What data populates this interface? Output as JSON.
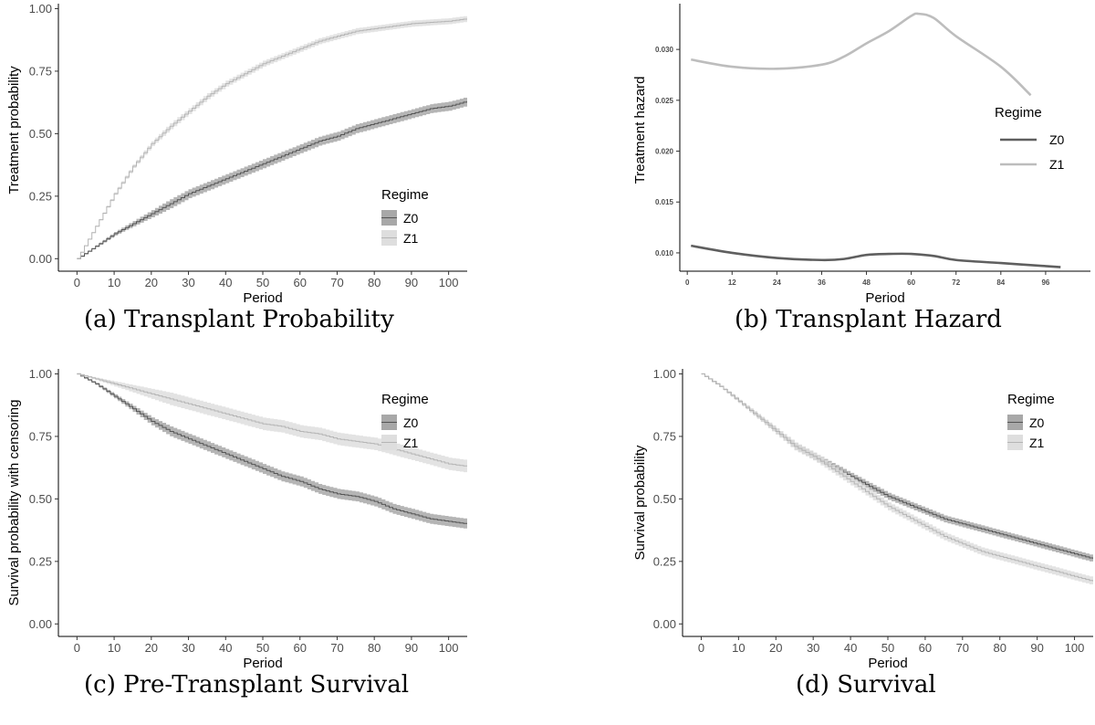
{
  "chart_data": [
    {
      "id": "a",
      "type": "line",
      "caption": "(a) Transplant Probability",
      "xlabel": "Period",
      "ylabel": "Treatment probability",
      "xlim": [
        -5,
        105
      ],
      "ylim": [
        -0.05,
        1.02
      ],
      "xticks": [
        0,
        10,
        20,
        30,
        40,
        50,
        60,
        70,
        80,
        90,
        100
      ],
      "yticks": [
        0.0,
        0.25,
        0.5,
        0.75,
        1.0
      ],
      "ytick_labels": [
        "0.00",
        "0.25",
        "0.50",
        "0.75",
        "1.00"
      ],
      "step": true,
      "band": true,
      "legend": {
        "title": "Regime",
        "position": "bottom-right"
      },
      "series": [
        {
          "name": "Z0",
          "line_color": "#555555",
          "band_color": "#a8a8a8",
          "x": [
            0,
            5,
            10,
            15,
            20,
            25,
            30,
            35,
            40,
            45,
            50,
            55,
            60,
            65,
            70,
            75,
            80,
            85,
            90,
            95,
            100,
            105
          ],
          "y": [
            0.0,
            0.05,
            0.1,
            0.14,
            0.18,
            0.22,
            0.26,
            0.29,
            0.32,
            0.35,
            0.38,
            0.41,
            0.44,
            0.47,
            0.49,
            0.52,
            0.54,
            0.56,
            0.58,
            0.6,
            0.61,
            0.63
          ],
          "band_halfwidth": 0.018
        },
        {
          "name": "Z1",
          "line_color": "#b5b5b5",
          "band_color": "#dedede",
          "x": [
            0,
            5,
            10,
            15,
            20,
            25,
            30,
            35,
            40,
            45,
            50,
            55,
            60,
            65,
            70,
            75,
            80,
            85,
            90,
            95,
            100,
            105
          ],
          "y": [
            0.0,
            0.13,
            0.26,
            0.37,
            0.46,
            0.53,
            0.59,
            0.65,
            0.7,
            0.74,
            0.78,
            0.81,
            0.84,
            0.87,
            0.89,
            0.91,
            0.92,
            0.93,
            0.94,
            0.945,
            0.95,
            0.96
          ],
          "band_halfwidth": 0.012
        }
      ]
    },
    {
      "id": "b",
      "type": "line",
      "caption": "(b) Transplant Hazard",
      "xlabel": "Period",
      "ylabel": "Treatment hazard",
      "xlim": [
        -2,
        108
      ],
      "ylim": [
        0.0082,
        0.0345
      ],
      "xticks": [
        0,
        12,
        24,
        36,
        48,
        60,
        72,
        84,
        96
      ],
      "yticks": [
        0.01,
        0.015,
        0.02,
        0.025,
        0.03
      ],
      "ytick_labels": [
        "0.010",
        "0.015",
        "0.020",
        "0.025",
        "0.030"
      ],
      "small_ticks": true,
      "smooth": true,
      "legend": {
        "title": "Regime",
        "position": "right"
      },
      "series": [
        {
          "name": "Z0",
          "line_color": "#5f5f5f",
          "x": [
            1,
            12,
            24,
            36,
            42,
            48,
            54,
            60,
            66,
            72,
            84,
            96,
            100
          ],
          "y": [
            0.0107,
            0.01,
            0.0095,
            0.0093,
            0.0094,
            0.0098,
            0.0099,
            0.0099,
            0.0097,
            0.0093,
            0.009,
            0.0087,
            0.0086
          ]
        },
        {
          "name": "Z1",
          "line_color": "#bdbdbd",
          "x": [
            1,
            12,
            24,
            36,
            42,
            48,
            54,
            60,
            62,
            66,
            72,
            84,
            92
          ],
          "y": [
            0.029,
            0.0283,
            0.0281,
            0.0285,
            0.0293,
            0.0306,
            0.0318,
            0.0333,
            0.0335,
            0.0331,
            0.0313,
            0.0283,
            0.0255
          ]
        }
      ]
    },
    {
      "id": "c",
      "type": "line",
      "caption": "(c) Pre-Transplant Survival",
      "xlabel": "Period",
      "ylabel": "Survival probability with censoring",
      "xlim": [
        -5,
        105
      ],
      "ylim": [
        -0.05,
        1.02
      ],
      "xticks": [
        0,
        10,
        20,
        30,
        40,
        50,
        60,
        70,
        80,
        90,
        100
      ],
      "yticks": [
        0.0,
        0.25,
        0.5,
        0.75,
        1.0
      ],
      "ytick_labels": [
        "0.00",
        "0.25",
        "0.50",
        "0.75",
        "1.00"
      ],
      "step": true,
      "band": true,
      "legend": {
        "title": "Regime",
        "position": "top-right"
      },
      "series": [
        {
          "name": "Z0",
          "line_color": "#555555",
          "band_color": "#a8a8a8",
          "x": [
            0,
            5,
            10,
            15,
            20,
            25,
            30,
            35,
            40,
            45,
            50,
            55,
            60,
            65,
            70,
            75,
            80,
            85,
            90,
            95,
            100,
            105
          ],
          "y": [
            1.0,
            0.96,
            0.91,
            0.86,
            0.81,
            0.77,
            0.74,
            0.71,
            0.68,
            0.65,
            0.62,
            0.59,
            0.57,
            0.54,
            0.52,
            0.51,
            0.49,
            0.46,
            0.44,
            0.42,
            0.41,
            0.4
          ],
          "band_halfwidth": 0.02
        },
        {
          "name": "Z1",
          "line_color": "#b5b5b5",
          "band_color": "#dedede",
          "x": [
            0,
            5,
            10,
            15,
            20,
            25,
            30,
            35,
            40,
            45,
            50,
            55,
            60,
            65,
            70,
            75,
            80,
            85,
            90,
            95,
            100,
            105
          ],
          "y": [
            1.0,
            0.98,
            0.96,
            0.94,
            0.92,
            0.9,
            0.88,
            0.86,
            0.84,
            0.82,
            0.8,
            0.79,
            0.77,
            0.76,
            0.74,
            0.73,
            0.72,
            0.7,
            0.68,
            0.66,
            0.64,
            0.63
          ],
          "band_halfwidth": 0.025
        }
      ]
    },
    {
      "id": "d",
      "type": "line",
      "caption": "(d) Survival",
      "xlabel": "Period",
      "ylabel": "Survival probability",
      "xlim": [
        -5,
        105
      ],
      "ylim": [
        -0.05,
        1.02
      ],
      "xticks": [
        0,
        10,
        20,
        30,
        40,
        50,
        60,
        70,
        80,
        90,
        100
      ],
      "yticks": [
        0.0,
        0.25,
        0.5,
        0.75,
        1.0
      ],
      "ytick_labels": [
        "0.00",
        "0.25",
        "0.50",
        "0.75",
        "1.00"
      ],
      "step": true,
      "band": true,
      "legend": {
        "title": "Regime",
        "position": "top-right"
      },
      "series": [
        {
          "name": "Z0",
          "line_color": "#555555",
          "band_color": "#a8a8a8",
          "x": [
            0,
            5,
            10,
            15,
            20,
            25,
            30,
            35,
            40,
            45,
            50,
            55,
            60,
            65,
            70,
            75,
            80,
            85,
            90,
            95,
            100,
            105
          ],
          "y": [
            1.0,
            0.95,
            0.89,
            0.83,
            0.77,
            0.71,
            0.67,
            0.63,
            0.59,
            0.55,
            0.51,
            0.48,
            0.45,
            0.42,
            0.4,
            0.38,
            0.36,
            0.34,
            0.32,
            0.3,
            0.28,
            0.26
          ],
          "band_halfwidth": 0.014
        },
        {
          "name": "Z1",
          "line_color": "#b5b5b5",
          "band_color": "#dedede",
          "x": [
            0,
            5,
            10,
            15,
            20,
            25,
            30,
            35,
            40,
            45,
            50,
            55,
            60,
            65,
            70,
            75,
            80,
            85,
            90,
            95,
            100,
            105
          ],
          "y": [
            1.0,
            0.95,
            0.89,
            0.83,
            0.77,
            0.71,
            0.67,
            0.62,
            0.57,
            0.52,
            0.47,
            0.43,
            0.39,
            0.35,
            0.32,
            0.29,
            0.27,
            0.25,
            0.23,
            0.21,
            0.19,
            0.17
          ],
          "band_halfwidth": 0.016
        }
      ]
    }
  ]
}
